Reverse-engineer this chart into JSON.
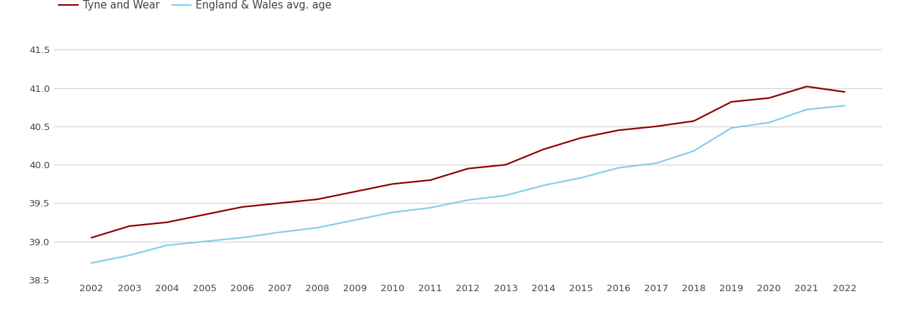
{
  "years": [
    2002,
    2003,
    2004,
    2005,
    2006,
    2007,
    2008,
    2009,
    2010,
    2011,
    2012,
    2013,
    2014,
    2015,
    2016,
    2017,
    2018,
    2019,
    2020,
    2021,
    2022
  ],
  "tyne_wear": [
    39.05,
    39.2,
    39.25,
    39.35,
    39.45,
    39.5,
    39.55,
    39.65,
    39.75,
    39.8,
    39.95,
    40.0,
    40.2,
    40.35,
    40.45,
    40.5,
    40.57,
    40.82,
    40.87,
    41.02,
    40.95
  ],
  "england_wales": [
    38.72,
    38.82,
    38.95,
    39.0,
    39.05,
    39.12,
    39.18,
    39.28,
    39.38,
    39.44,
    39.54,
    39.6,
    39.73,
    39.83,
    39.96,
    40.02,
    40.18,
    40.48,
    40.55,
    40.72,
    40.77
  ],
  "tyne_wear_color": "#8B0000",
  "england_wales_color": "#87CEEB",
  "tyne_wear_label": "Tyne and Wear",
  "england_wales_label": "England & Wales avg. age",
  "ylim": [
    38.5,
    41.65
  ],
  "yticks": [
    38.5,
    39.0,
    39.5,
    40.0,
    40.5,
    41.0,
    41.5
  ],
  "background_color": "#ffffff",
  "grid_color": "#cccccc",
  "line_width": 1.6,
  "legend_fontsize": 10.5,
  "tick_fontsize": 9.5,
  "tick_color": "#444444"
}
